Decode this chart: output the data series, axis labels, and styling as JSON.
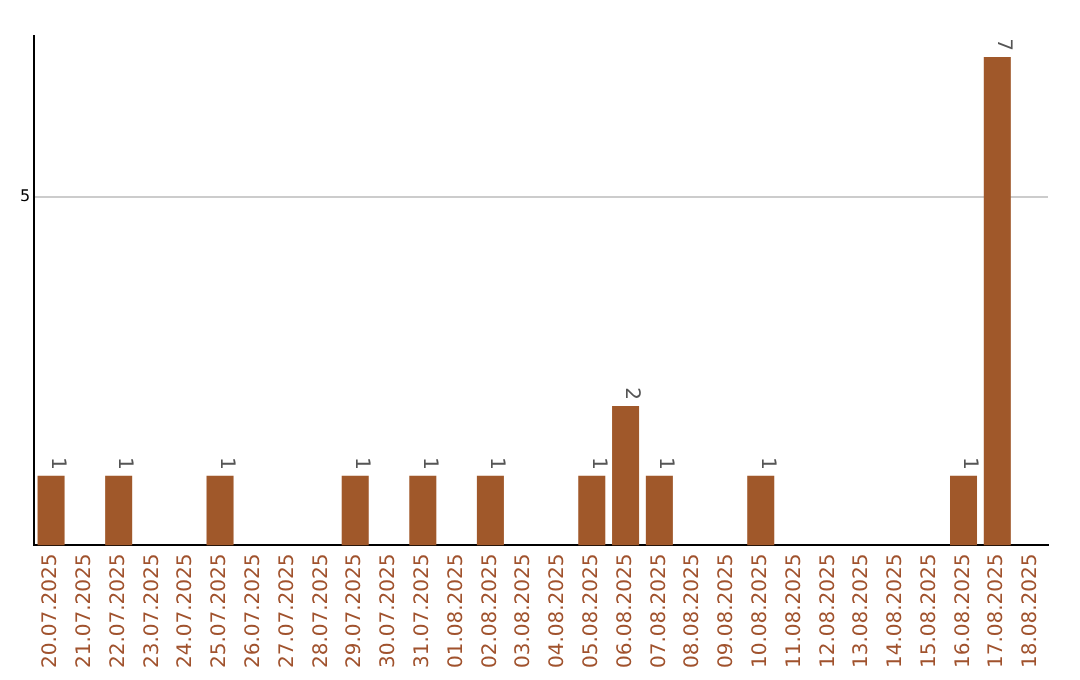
{
  "chart_data": {
    "type": "bar",
    "categories": [
      "20.07.2025",
      "21.07.2025",
      "22.07.2025",
      "23.07.2025",
      "24.07.2025",
      "25.07.2025",
      "26.07.2025",
      "27.07.2025",
      "28.07.2025",
      "29.07.2025",
      "30.07.2025",
      "31.07.2025",
      "01.08.2025",
      "02.08.2025",
      "03.08.2025",
      "04.08.2025",
      "05.08.2025",
      "06.08.2025",
      "07.08.2025",
      "08.08.2025",
      "09.08.2025",
      "10.08.2025",
      "11.08.2025",
      "12.08.2025",
      "13.08.2025",
      "14.08.2025",
      "15.08.2025",
      "16.08.2025",
      "17.08.2025",
      "18.08.2025"
    ],
    "values": [
      1,
      0,
      1,
      0,
      0,
      1,
      0,
      0,
      0,
      1,
      0,
      1,
      0,
      1,
      0,
      0,
      1,
      2,
      1,
      0,
      0,
      1,
      0,
      0,
      0,
      0,
      0,
      1,
      7,
      0
    ],
    "value_labels": [
      "1",
      null,
      "1",
      null,
      null,
      "1",
      null,
      null,
      null,
      "1",
      null,
      "1",
      null,
      "1",
      null,
      null,
      "1",
      "2",
      "1",
      null,
      null,
      "1",
      null,
      null,
      null,
      null,
      null,
      "1",
      "7",
      null
    ],
    "color": "#a0582a",
    "ylim": [
      0,
      7.3
    ],
    "yticks": [
      5
    ],
    "grid": "y",
    "legend": false
  }
}
